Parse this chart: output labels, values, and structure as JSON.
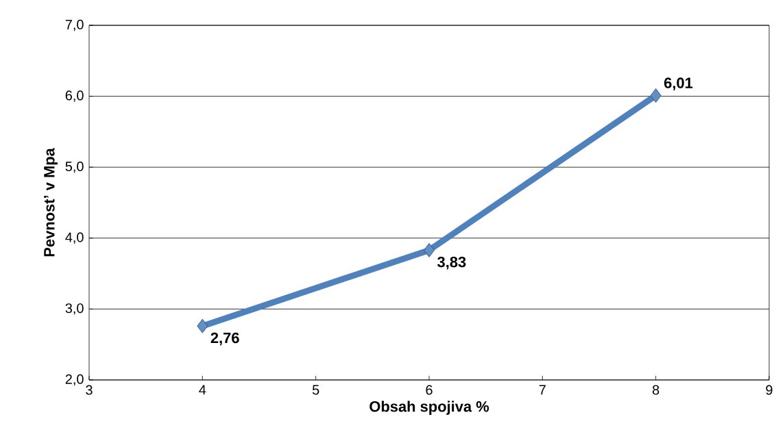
{
  "chart_data": {
    "type": "line",
    "xlabel": "Obsah spojiva %",
    "ylabel": "Pevnost’ v Mpa",
    "x": [
      4,
      6,
      8
    ],
    "series": [
      {
        "color": "#4f81bd",
        "values": [
          2.76,
          3.83,
          6.01
        ],
        "value_labels": [
          "2,76",
          "3,83",
          "6,01"
        ]
      }
    ],
    "xlim": [
      3,
      9
    ],
    "xticks": [
      3,
      4,
      5,
      6,
      7,
      8,
      9
    ],
    "ylim": [
      2,
      7
    ],
    "yticks": [
      {
        "value": 2,
        "label": "2,0"
      },
      {
        "value": 3,
        "label": "3,0"
      },
      {
        "value": 4,
        "label": "4,0"
      },
      {
        "value": 5,
        "label": "5,0"
      },
      {
        "value": 6,
        "label": "6,0"
      },
      {
        "value": 7,
        "label": "7,0"
      }
    ],
    "grid": "y",
    "marker": "diamond",
    "line_style": "solid"
  }
}
